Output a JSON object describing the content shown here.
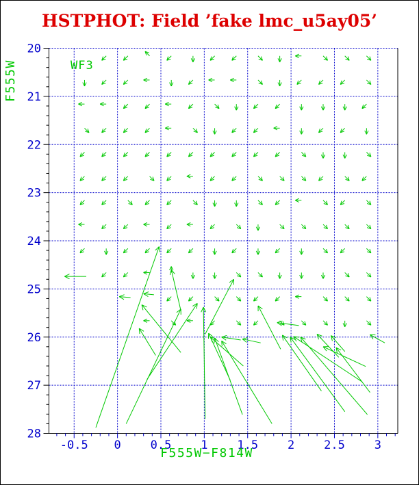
{
  "window": {
    "background": "#ffffff",
    "border_color": "#000000"
  },
  "title": {
    "text": "HSTPHOT: Field ’fake lmc_u5ay05’",
    "color": "#dd0000"
  },
  "colors": {
    "frame": "#000000",
    "grid": "#0000cc",
    "tick_labels": "#0000cc",
    "axis_titles": "#00c800",
    "arrows": "#00c800",
    "title": "#dd0000"
  },
  "chart_data": {
    "type": "quiver",
    "title": "HSTPHOT: Field ’fake lmc_u5ay05’",
    "xlabel": "F555W−F814W",
    "ylabel": "F555W",
    "panel_label": "WF3",
    "xlim": [
      -0.79,
      3.23
    ],
    "ylim": [
      28,
      20
    ],
    "grid": "dotted blue lines at every major tick",
    "legend_position": "none",
    "x_major_ticks": [
      -0.5,
      0,
      0.5,
      1,
      1.5,
      2,
      2.5,
      3
    ],
    "x_tick_labels": [
      "-0.5",
      "0",
      "0.5",
      "1",
      "1.5",
      "2",
      "2.5",
      "3"
    ],
    "x_minor_step": 0.1,
    "y_major_ticks": [
      20,
      21,
      22,
      23,
      24,
      25,
      26,
      27,
      28
    ],
    "y_tick_labels": [
      "20",
      "21",
      "22",
      "23",
      "24",
      "25",
      "26",
      "27",
      "28"
    ],
    "y_minor_step": 0.2,
    "grid_columns_x": [
      -0.38,
      -0.13,
      0.12,
      0.37,
      0.62,
      0.87,
      1.12,
      1.37,
      1.62,
      1.87,
      2.12,
      2.37,
      2.62,
      2.87
    ],
    "small_arrow_rows": [
      {
        "mag": 20.16,
        "start_col": 1,
        "dirs": [
          "dl",
          "dl",
          "ul",
          "dl",
          "d",
          "dl",
          "dl",
          "dr",
          "d",
          "l",
          "dr",
          "dr",
          "dr"
        ]
      },
      {
        "mag": 20.66,
        "start_col": 0,
        "dirs": [
          "d",
          "dl",
          "dl",
          "l",
          "d",
          "dl",
          "l",
          "l",
          "dr",
          "d",
          "dl",
          "dl",
          "dl",
          "dr"
        ]
      },
      {
        "mag": 21.16,
        "start_col": 0,
        "dirs": [
          "l",
          "l",
          "dl",
          "dl",
          "l",
          "dl",
          "dr",
          "d",
          "dl",
          "dl",
          "d",
          "d",
          "d",
          "dl"
        ]
      },
      {
        "mag": 21.66,
        "start_col": 0,
        "dirs": [
          "dr",
          "dl",
          "dl",
          "dl",
          "l",
          "dr",
          "d",
          "dl",
          "dl",
          "l",
          "d",
          "dl",
          "dl",
          "d"
        ]
      },
      {
        "mag": 22.16,
        "start_col": 0,
        "dirs": [
          "dl",
          "dl",
          "dl",
          "dl",
          "dl",
          "dl",
          "dl",
          "dl",
          "dl",
          "dl",
          "dr",
          "d",
          "d",
          "dr"
        ]
      },
      {
        "mag": 22.66,
        "start_col": 0,
        "dirs": [
          "dl",
          "dl",
          "dl",
          "dr",
          "dl",
          "l",
          "dl",
          "dl",
          "dr",
          "dr",
          "dr",
          "dl",
          "dr",
          "dl"
        ]
      },
      {
        "mag": 23.16,
        "start_col": 0,
        "dirs": [
          "dl",
          "dl",
          "dr",
          "dl",
          "dl",
          "dr",
          "d",
          "d",
          "dr",
          "dl",
          "l",
          "dr",
          "dl",
          "dr"
        ]
      },
      {
        "mag": 23.66,
        "start_col": 0,
        "dirs": [
          "l",
          "dl",
          "dl",
          "l",
          "dl",
          "l",
          "dl",
          "dr",
          "d",
          "dr",
          "dr",
          "dr",
          "dr",
          "dr"
        ]
      },
      {
        "mag": 24.16,
        "start_col": 0,
        "dirs": [
          "dl",
          "d",
          "dl",
          "dl",
          "dl",
          "dl",
          "d",
          "dl",
          "d",
          "dl",
          "d",
          "dr",
          "dl",
          "dr"
        ]
      },
      {
        "mag": 24.66,
        "start_col": 1,
        "dirs": [
          "dl",
          "dl",
          "l",
          "u",
          "d",
          "d",
          "dr",
          "dr",
          "d",
          "d",
          "d",
          "dr",
          "dr"
        ]
      },
      {
        "mag": 25.16,
        "start_col": 4,
        "dirs": [
          "dl",
          "dl",
          "dr",
          "dr",
          "dl",
          "dl",
          "l",
          "dr",
          "dr",
          "dr"
        ]
      },
      {
        "mag": 25.66,
        "start_col": 3,
        "dirs": [
          "l",
          "dr",
          "l",
          "dl",
          "dr",
          "dl",
          "dr",
          "dr",
          "dr",
          "d",
          "dr"
        ]
      }
    ],
    "long_arrows": [
      [
        -0.36,
        24.74,
        -0.61,
        24.74
      ],
      [
        0.15,
        25.18,
        0.02,
        25.16
      ],
      [
        0.42,
        25.12,
        0.3,
        25.1
      ],
      [
        -0.25,
        27.88,
        0.48,
        24.12
      ],
      [
        0.1,
        27.8,
        0.73,
        25.42
      ],
      [
        0.73,
        26.32,
        0.28,
        25.33
      ],
      [
        0.34,
        26.88,
        0.92,
        25.3
      ],
      [
        0.44,
        26.38,
        0.25,
        25.82
      ],
      [
        0.73,
        25.45,
        0.62,
        24.6
      ],
      [
        1.01,
        27.7,
        0.99,
        25.38
      ],
      [
        1.01,
        25.94,
        1.34,
        24.8
      ],
      [
        1.3,
        26.9,
        1.05,
        25.92
      ],
      [
        1.44,
        27.61,
        1.12,
        26.02
      ],
      [
        1.78,
        27.8,
        1.2,
        26.08
      ],
      [
        1.45,
        26.6,
        1.07,
        26.0
      ],
      [
        1.42,
        26.06,
        1.2,
        26.0
      ],
      [
        1.65,
        26.12,
        1.44,
        26.04
      ],
      [
        1.88,
        26.25,
        1.62,
        25.35
      ],
      [
        2.09,
        25.76,
        1.84,
        25.7
      ],
      [
        2.35,
        27.12,
        1.9,
        25.96
      ],
      [
        2.62,
        27.55,
        1.99,
        26.0
      ],
      [
        2.88,
        27.61,
        2.11,
        26.0
      ],
      [
        2.82,
        26.93,
        2.03,
        25.99
      ],
      [
        2.55,
        26.42,
        2.3,
        25.94
      ],
      [
        2.86,
        26.61,
        2.37,
        26.2
      ],
      [
        2.91,
        27.15,
        2.52,
        26.22
      ],
      [
        2.62,
        26.3,
        2.46,
        25.97
      ],
      [
        3.08,
        26.12,
        2.91,
        25.95
      ]
    ]
  }
}
